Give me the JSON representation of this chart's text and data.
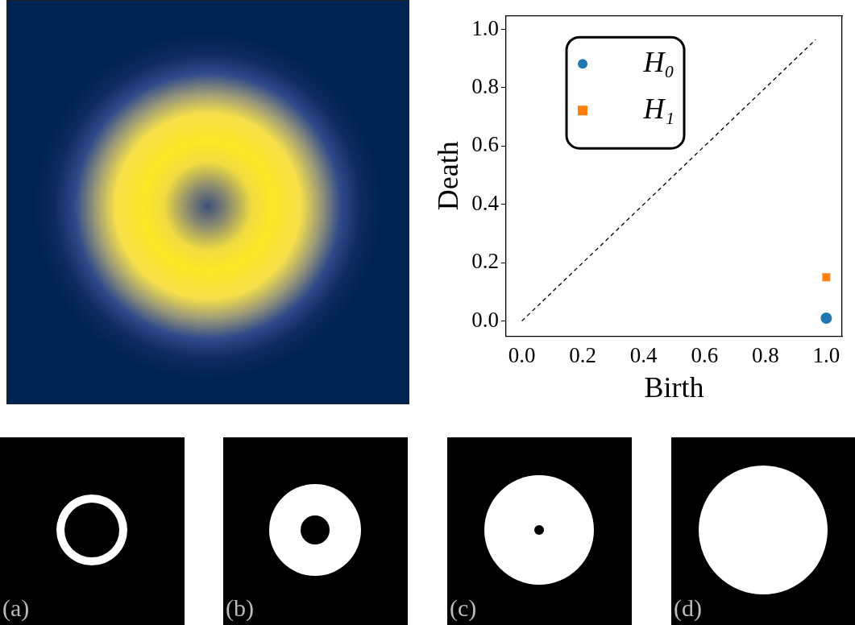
{
  "chart_data": {
    "type": "scatter",
    "xlabel": "Birth",
    "ylabel": "Death",
    "xlim": [
      -0.052,
      1.052
    ],
    "ylim": [
      -0.052,
      1.048
    ],
    "xticks": [
      {
        "value": 0,
        "label": "0.0"
      },
      {
        "value": 0.2,
        "label": "0.2"
      },
      {
        "value": 0.4,
        "label": "0.4"
      },
      {
        "value": 0.6,
        "label": "0.6"
      },
      {
        "value": 0.8,
        "label": "0.8"
      },
      {
        "value": 1,
        "label": "1.0"
      }
    ],
    "yticks": [
      {
        "value": 0,
        "label": "0.0"
      },
      {
        "value": 0.2,
        "label": "0.2"
      },
      {
        "value": 0.4,
        "label": "0.4"
      },
      {
        "value": 0.6,
        "label": "0.6"
      },
      {
        "value": 0.8,
        "label": "0.8"
      },
      {
        "value": 1,
        "label": "1.0"
      }
    ],
    "grid": false,
    "legend": "top left",
    "series": [
      {
        "name": "H₀",
        "color": "#1f77b4",
        "marker": "circle",
        "x": [
          1.0
        ],
        "values": [
          0.01
        ]
      },
      {
        "name": "H₁",
        "color": "#ff7f0e",
        "marker": "square",
        "x": [
          1.0
        ],
        "values": [
          0.15
        ]
      },
      {
        "type": "line",
        "color": "#000000",
        "line_style": "dashed",
        "marker": "none",
        "x": [
          0,
          0.965
        ],
        "values": [
          0,
          0.965
        ]
      }
    ],
    "annotations": [
      "(a)",
      "(b)",
      "(c)",
      "(d)"
    ]
  }
}
